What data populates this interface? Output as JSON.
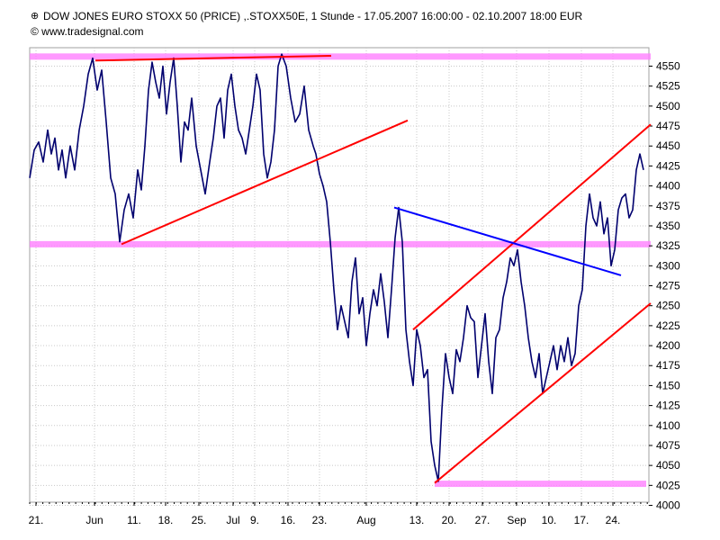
{
  "header": {
    "title": "DOW JONES EURO STOXX 50 (PRICE) ,.STOXX50E, 1 Stunde - 17.05.2007 16:00:00 - 02.10.2007 18:00 EUR",
    "copyright": "© www.tradesignal.com"
  },
  "icons": {
    "title_icon": "chart-settings-icon"
  },
  "colors": {
    "price": "#00006e",
    "trendline": "#ff0000",
    "channel_line": "#0000ff",
    "zone": "#ff80ff",
    "grid": "#c8c8c8"
  },
  "chart_data": {
    "type": "line",
    "title": "DOW JONES EURO STOXX 50 (PRICE) ,.STOXX50E, 1 Stunde - 17.05.2007 16:00:00 - 02.10.2007 18:00 EUR",
    "ylim": [
      3980,
      4580
    ],
    "y_ticks": [
      4000,
      4025,
      4050,
      4075,
      4100,
      4125,
      4150,
      4175,
      4200,
      4225,
      4250,
      4275,
      4300,
      4325,
      4350,
      4375,
      4400,
      4425,
      4450,
      4475,
      4500,
      4525,
      4550
    ],
    "x_ticks": [
      {
        "label": "21.",
        "t": 7
      },
      {
        "label": "Jun",
        "t": 72
      },
      {
        "label": "11.",
        "t": 116
      },
      {
        "label": "18.",
        "t": 151
      },
      {
        "label": "25.",
        "t": 188
      },
      {
        "label": "Jul",
        "t": 226
      },
      {
        "label": "9.",
        "t": 250
      },
      {
        "label": "16.",
        "t": 287
      },
      {
        "label": "23.",
        "t": 322
      },
      {
        "label": "Aug",
        "t": 374
      },
      {
        "label": "13.",
        "t": 430
      },
      {
        "label": "20.",
        "t": 466
      },
      {
        "label": "27.",
        "t": 503
      },
      {
        "label": "Sep",
        "t": 541
      },
      {
        "label": "10.",
        "t": 577
      },
      {
        "label": "17.",
        "t": 613
      },
      {
        "label": "24.",
        "t": 648
      }
    ],
    "grid": true,
    "legend": "none",
    "series": [
      {
        "points": [
          [
            0,
            4410
          ],
          [
            5,
            4445
          ],
          [
            10,
            4455
          ],
          [
            15,
            4430
          ],
          [
            20,
            4470
          ],
          [
            24,
            4440
          ],
          [
            28,
            4460
          ],
          [
            32,
            4420
          ],
          [
            36,
            4445
          ],
          [
            40,
            4410
          ],
          [
            45,
            4450
          ],
          [
            50,
            4420
          ],
          [
            55,
            4470
          ],
          [
            60,
            4500
          ],
          [
            65,
            4540
          ],
          [
            70,
            4560
          ],
          [
            75,
            4520
          ],
          [
            80,
            4545
          ],
          [
            85,
            4480
          ],
          [
            90,
            4410
          ],
          [
            95,
            4390
          ],
          [
            100,
            4330
          ],
          [
            105,
            4370
          ],
          [
            110,
            4390
          ],
          [
            115,
            4360
          ],
          [
            120,
            4420
          ],
          [
            124,
            4395
          ],
          [
            128,
            4450
          ],
          [
            132,
            4520
          ],
          [
            136,
            4555
          ],
          [
            140,
            4530
          ],
          [
            144,
            4510
          ],
          [
            148,
            4550
          ],
          [
            152,
            4490
          ],
          [
            156,
            4530
          ],
          [
            160,
            4560
          ],
          [
            164,
            4500
          ],
          [
            168,
            4430
          ],
          [
            172,
            4480
          ],
          [
            176,
            4470
          ],
          [
            180,
            4510
          ],
          [
            185,
            4450
          ],
          [
            190,
            4420
          ],
          [
            195,
            4390
          ],
          [
            200,
            4430
          ],
          [
            204,
            4460
          ],
          [
            208,
            4500
          ],
          [
            212,
            4510
          ],
          [
            216,
            4460
          ],
          [
            220,
            4520
          ],
          [
            224,
            4540
          ],
          [
            228,
            4500
          ],
          [
            232,
            4470
          ],
          [
            236,
            4460
          ],
          [
            240,
            4440
          ],
          [
            244,
            4470
          ],
          [
            248,
            4500
          ],
          [
            252,
            4540
          ],
          [
            256,
            4520
          ],
          [
            260,
            4440
          ],
          [
            264,
            4410
          ],
          [
            268,
            4430
          ],
          [
            272,
            4470
          ],
          [
            276,
            4550
          ],
          [
            280,
            4565
          ],
          [
            285,
            4550
          ],
          [
            290,
            4510
          ],
          [
            295,
            4480
          ],
          [
            300,
            4490
          ],
          [
            305,
            4525
          ],
          [
            310,
            4470
          ],
          [
            315,
            4450
          ],
          [
            318,
            4440
          ],
          [
            322,
            4415
          ],
          [
            326,
            4400
          ],
          [
            330,
            4380
          ],
          [
            334,
            4330
          ],
          [
            338,
            4270
          ],
          [
            342,
            4220
          ],
          [
            346,
            4250
          ],
          [
            350,
            4230
          ],
          [
            354,
            4210
          ],
          [
            358,
            4280
          ],
          [
            362,
            4310
          ],
          [
            366,
            4240
          ],
          [
            370,
            4260
          ],
          [
            374,
            4200
          ],
          [
            378,
            4240
          ],
          [
            382,
            4270
          ],
          [
            386,
            4250
          ],
          [
            390,
            4290
          ],
          [
            394,
            4255
          ],
          [
            398,
            4210
          ],
          [
            402,
            4270
          ],
          [
            406,
            4335
          ],
          [
            410,
            4373
          ],
          [
            414,
            4330
          ],
          [
            418,
            4220
          ],
          [
            422,
            4180
          ],
          [
            426,
            4150
          ],
          [
            430,
            4220
          ],
          [
            434,
            4200
          ],
          [
            438,
            4160
          ],
          [
            442,
            4170
          ],
          [
            446,
            4080
          ],
          [
            450,
            4050
          ],
          [
            454,
            4030
          ],
          [
            458,
            4120
          ],
          [
            462,
            4190
          ],
          [
            466,
            4160
          ],
          [
            470,
            4140
          ],
          [
            474,
            4195
          ],
          [
            478,
            4180
          ],
          [
            482,
            4210
          ],
          [
            486,
            4250
          ],
          [
            490,
            4235
          ],
          [
            494,
            4230
          ],
          [
            498,
            4160
          ],
          [
            502,
            4200
          ],
          [
            506,
            4240
          ],
          [
            510,
            4180
          ],
          [
            514,
            4140
          ],
          [
            518,
            4210
          ],
          [
            522,
            4220
          ],
          [
            526,
            4260
          ],
          [
            530,
            4280
          ],
          [
            534,
            4310
          ],
          [
            538,
            4300
          ],
          [
            542,
            4320
          ],
          [
            546,
            4280
          ],
          [
            550,
            4250
          ],
          [
            554,
            4210
          ],
          [
            558,
            4180
          ],
          [
            562,
            4160
          ],
          [
            566,
            4190
          ],
          [
            570,
            4140
          ],
          [
            574,
            4160
          ],
          [
            578,
            4180
          ],
          [
            582,
            4200
          ],
          [
            586,
            4170
          ],
          [
            590,
            4200
          ],
          [
            594,
            4180
          ],
          [
            598,
            4210
          ],
          [
            602,
            4175
          ],
          [
            606,
            4190
          ],
          [
            610,
            4250
          ],
          [
            614,
            4270
          ],
          [
            618,
            4350
          ],
          [
            622,
            4390
          ],
          [
            626,
            4360
          ],
          [
            630,
            4350
          ],
          [
            634,
            4380
          ],
          [
            638,
            4340
          ],
          [
            642,
            4360
          ],
          [
            646,
            4300
          ],
          [
            650,
            4320
          ],
          [
            654,
            4370
          ],
          [
            658,
            4385
          ],
          [
            662,
            4390
          ],
          [
            666,
            4360
          ],
          [
            670,
            4370
          ],
          [
            674,
            4420
          ],
          [
            678,
            4440
          ],
          [
            682,
            4420
          ]
        ]
      }
    ],
    "trendlines": [
      {
        "name": "resistance",
        "color": "#ff0000",
        "from": [
          73,
          4557
        ],
        "to": [
          335,
          4563
        ]
      },
      {
        "name": "support-triangle",
        "color": "#ff0000",
        "from": [
          102,
          4327
        ],
        "to": [
          420,
          4482
        ]
      },
      {
        "name": "channel-upper",
        "color": "#ff0000",
        "from": [
          426,
          4220
        ],
        "to": [
          690,
          4477
        ]
      },
      {
        "name": "channel-lower",
        "color": "#ff0000",
        "from": [
          450,
          4028
        ],
        "to": [
          690,
          4253
        ]
      },
      {
        "name": "falling-line",
        "color": "#0000ff",
        "from": [
          405,
          4373
        ],
        "to": [
          657,
          4288
        ]
      }
    ],
    "zones": [
      {
        "name": "zone-4560",
        "color": "#ff80ff",
        "y": 4562,
        "t_from": 0,
        "t_to": 690
      },
      {
        "name": "zone-4327",
        "color": "#ff80ff",
        "y": 4327,
        "t_from": 0,
        "t_to": 690
      },
      {
        "name": "zone-4027",
        "color": "#ff80ff",
        "y": 4027,
        "t_from": 450,
        "t_to": 685
      }
    ]
  }
}
